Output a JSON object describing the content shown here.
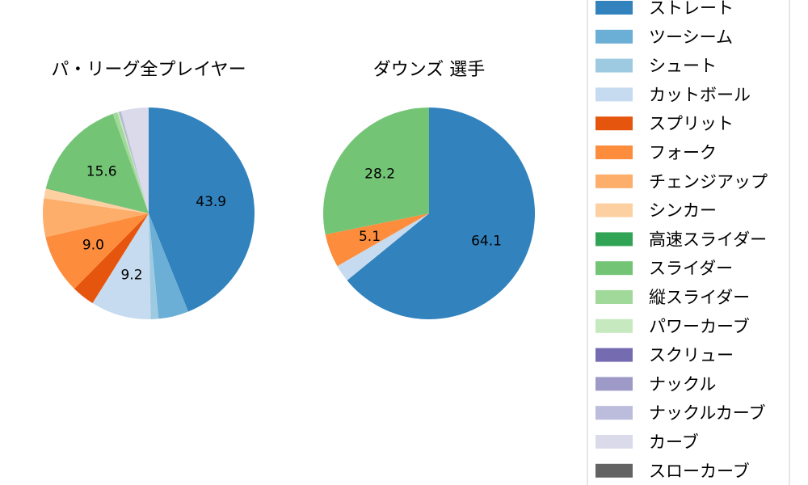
{
  "chart_data": [
    {
      "type": "pie",
      "title": "パ・リーグ全プレイヤー",
      "slices": [
        {
          "label": "ストレート",
          "value": 43.9,
          "color": "#3182bd",
          "show_label": true
        },
        {
          "label": "ツーシーム",
          "value": 4.6,
          "color": "#6baed6",
          "show_label": false
        },
        {
          "label": "シュート",
          "value": 1.2,
          "color": "#9ecae1",
          "show_label": false
        },
        {
          "label": "カットボール",
          "value": 9.2,
          "color": "#c6dbef",
          "show_label": true
        },
        {
          "label": "スプリット",
          "value": 3.5,
          "color": "#e6550d",
          "show_label": false
        },
        {
          "label": "フォーク",
          "value": 9.0,
          "color": "#fd8d3c",
          "show_label": true
        },
        {
          "label": "チェンジアップ",
          "value": 5.9,
          "color": "#fdae6b",
          "show_label": false
        },
        {
          "label": "シンカー",
          "value": 1.5,
          "color": "#fdd0a2",
          "show_label": false
        },
        {
          "label": "高速スライダー",
          "value": 0.1,
          "color": "#31a354",
          "show_label": false
        },
        {
          "label": "スライダー",
          "value": 15.6,
          "color": "#74c476",
          "show_label": true
        },
        {
          "label": "縦スライダー",
          "value": 0.7,
          "color": "#a1d99b",
          "show_label": false
        },
        {
          "label": "パワーカーブ",
          "value": 0.3,
          "color": "#c7e9c0",
          "show_label": false
        },
        {
          "label": "スクリュー",
          "value": 0.05,
          "color": "#756bb1",
          "show_label": false
        },
        {
          "label": "ナックル",
          "value": 0.05,
          "color": "#9e9ac8",
          "show_label": false
        },
        {
          "label": "ナックルカーブ",
          "value": 0.2,
          "color": "#bcbddc",
          "show_label": false
        },
        {
          "label": "カーブ",
          "value": 4.2,
          "color": "#dadaeb",
          "show_label": false
        }
      ]
    },
    {
      "type": "pie",
      "title": "ダウンズ  選手",
      "slices": [
        {
          "label": "ストレート",
          "value": 64.1,
          "color": "#3182bd",
          "show_label": true
        },
        {
          "label": "カットボール",
          "value": 2.6,
          "color": "#c6dbef",
          "show_label": false
        },
        {
          "label": "フォーク",
          "value": 5.1,
          "color": "#fd8d3c",
          "show_label": true
        },
        {
          "label": "スライダー",
          "value": 28.2,
          "color": "#74c476",
          "show_label": true
        }
      ]
    }
  ],
  "legend": {
    "placement": "right",
    "entries": [
      {
        "label": "ストレート",
        "color": "#3182bd"
      },
      {
        "label": "ツーシーム",
        "color": "#6baed6"
      },
      {
        "label": "シュート",
        "color": "#9ecae1"
      },
      {
        "label": "カットボール",
        "color": "#c6dbef"
      },
      {
        "label": "スプリット",
        "color": "#e6550d"
      },
      {
        "label": "フォーク",
        "color": "#fd8d3c"
      },
      {
        "label": "チェンジアップ",
        "color": "#fdae6b"
      },
      {
        "label": "シンカー",
        "color": "#fdd0a2"
      },
      {
        "label": "高速スライダー",
        "color": "#31a354"
      },
      {
        "label": "スライダー",
        "color": "#74c476"
      },
      {
        "label": "縦スライダー",
        "color": "#a1d99b"
      },
      {
        "label": "パワーカーブ",
        "color": "#c7e9c0"
      },
      {
        "label": "スクリュー",
        "color": "#756bb1"
      },
      {
        "label": "ナックル",
        "color": "#9e9ac8"
      },
      {
        "label": "ナックルカーブ",
        "color": "#bcbddc"
      },
      {
        "label": "カーブ",
        "color": "#dadaeb"
      },
      {
        "label": "スローカーブ",
        "color": "#636363"
      }
    ]
  }
}
